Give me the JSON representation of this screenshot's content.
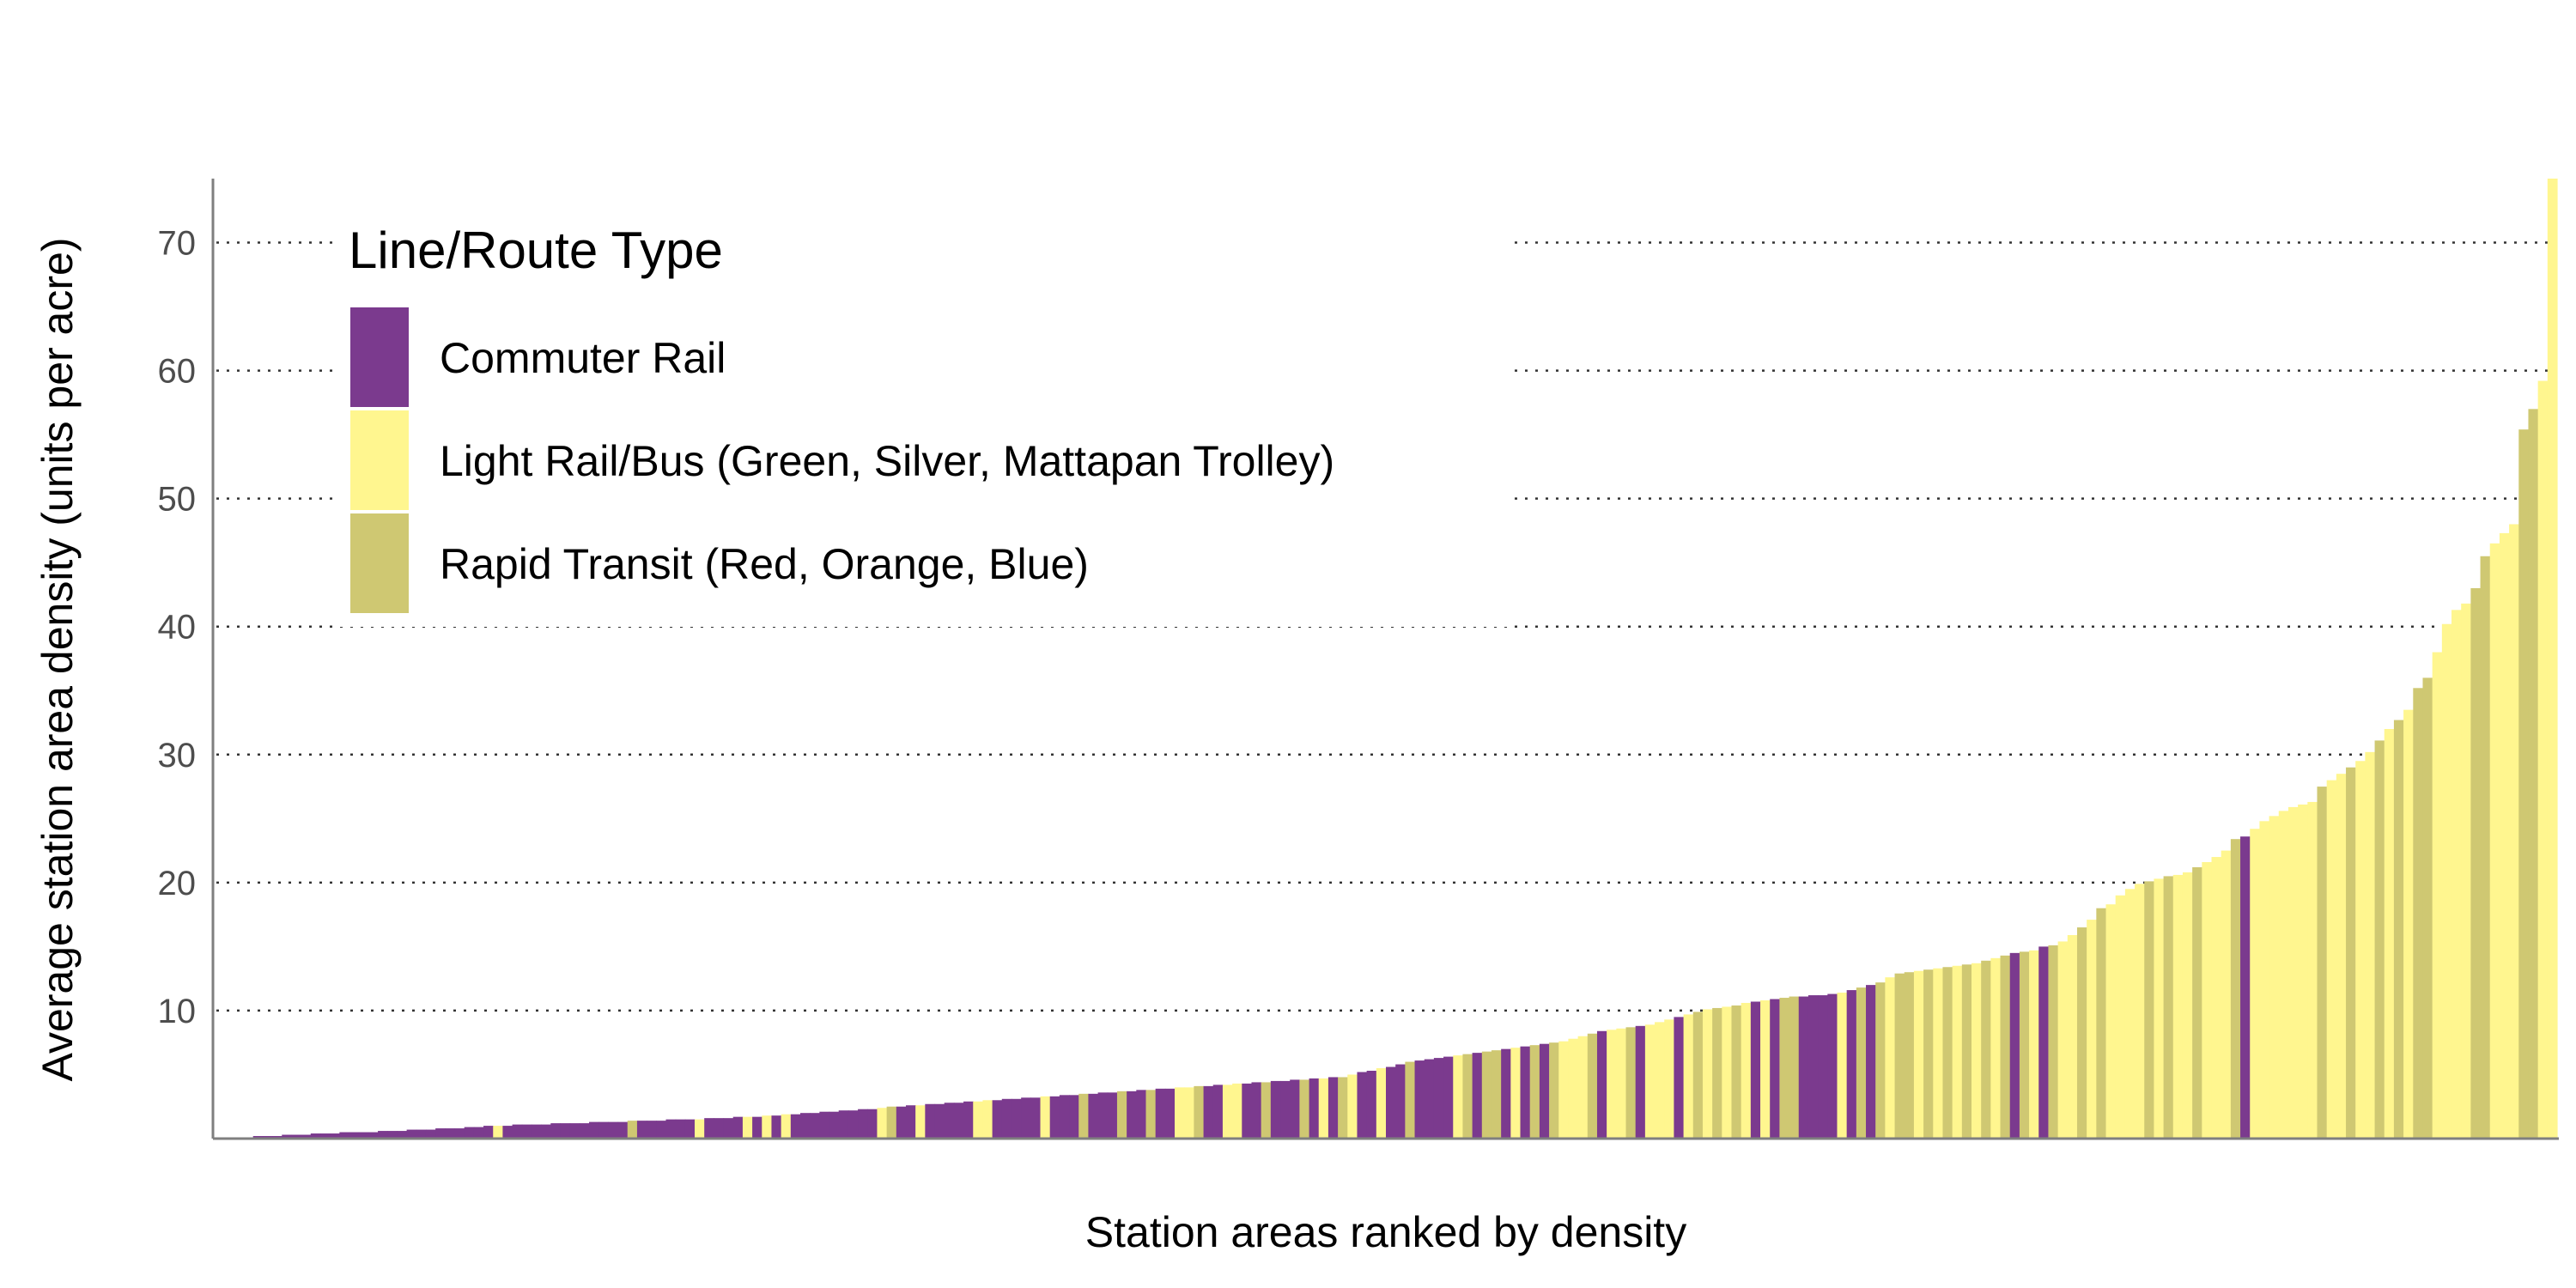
{
  "chart_data": {
    "type": "bar",
    "title": "",
    "xlabel": "Station areas ranked by density",
    "ylabel": "Average station area density (units per acre)",
    "ylim": [
      0,
      75
    ],
    "yticks": [
      10,
      20,
      30,
      40,
      50,
      60,
      70
    ],
    "grid": "horizontal-dotted",
    "legend": {
      "title": "Line/Route Type",
      "placement": "top-left-inside",
      "entries": [
        {
          "key": "CR",
          "label": "Commuter Rail",
          "color": "#7b3a8e"
        },
        {
          "key": "LR",
          "label": "Light Rail/Bus (Green, Silver, Mattapan Trolley)",
          "color": "#fff68f"
        },
        {
          "key": "RT",
          "label": "Rapid Transit (Red, Orange, Blue)",
          "color": "#cfc872"
        }
      ]
    },
    "colors": {
      "CR": "#7b3a8e",
      "LR": "#fff68f",
      "RT": "#cfc872"
    },
    "bars": [
      [
        "CR",
        0.1
      ],
      [
        "CR",
        0.1
      ],
      [
        "CR",
        0.1
      ],
      [
        "CR",
        0.1
      ],
      [
        "CR",
        0.2
      ],
      [
        "CR",
        0.2
      ],
      [
        "CR",
        0.2
      ],
      [
        "CR",
        0.3
      ],
      [
        "CR",
        0.3
      ],
      [
        "CR",
        0.3
      ],
      [
        "CR",
        0.4
      ],
      [
        "CR",
        0.4
      ],
      [
        "CR",
        0.4
      ],
      [
        "CR",
        0.5
      ],
      [
        "CR",
        0.5
      ],
      [
        "CR",
        0.5
      ],
      [
        "CR",
        0.5
      ],
      [
        "CR",
        0.6
      ],
      [
        "CR",
        0.6
      ],
      [
        "CR",
        0.6
      ],
      [
        "CR",
        0.7
      ],
      [
        "CR",
        0.7
      ],
      [
        "CR",
        0.7
      ],
      [
        "CR",
        0.8
      ],
      [
        "CR",
        0.8
      ],
      [
        "CR",
        0.8
      ],
      [
        "CR",
        0.9
      ],
      [
        "CR",
        0.9
      ],
      [
        "CR",
        1.0
      ],
      [
        "LR",
        1.0
      ],
      [
        "CR",
        1.0
      ],
      [
        "CR",
        1.1
      ],
      [
        "CR",
        1.1
      ],
      [
        "CR",
        1.1
      ],
      [
        "CR",
        1.1
      ],
      [
        "CR",
        1.2
      ],
      [
        "CR",
        1.2
      ],
      [
        "CR",
        1.2
      ],
      [
        "CR",
        1.2
      ],
      [
        "CR",
        1.3
      ],
      [
        "CR",
        1.3
      ],
      [
        "CR",
        1.3
      ],
      [
        "CR",
        1.3
      ],
      [
        "RT",
        1.4
      ],
      [
        "CR",
        1.4
      ],
      [
        "CR",
        1.4
      ],
      [
        "CR",
        1.4
      ],
      [
        "CR",
        1.5
      ],
      [
        "CR",
        1.5
      ],
      [
        "CR",
        1.5
      ],
      [
        "LR",
        1.5
      ],
      [
        "CR",
        1.6
      ],
      [
        "CR",
        1.6
      ],
      [
        "CR",
        1.6
      ],
      [
        "CR",
        1.7
      ],
      [
        "LR",
        1.7
      ],
      [
        "CR",
        1.7
      ],
      [
        "LR",
        1.8
      ],
      [
        "CR",
        1.8
      ],
      [
        "LR",
        1.9
      ],
      [
        "CR",
        1.9
      ],
      [
        "CR",
        2.0
      ],
      [
        "CR",
        2.0
      ],
      [
        "CR",
        2.1
      ],
      [
        "CR",
        2.1
      ],
      [
        "CR",
        2.2
      ],
      [
        "CR",
        2.2
      ],
      [
        "CR",
        2.3
      ],
      [
        "CR",
        2.3
      ],
      [
        "LR",
        2.4
      ],
      [
        "RT",
        2.5
      ],
      [
        "CR",
        2.5
      ],
      [
        "CR",
        2.6
      ],
      [
        "LR",
        2.6
      ],
      [
        "CR",
        2.7
      ],
      [
        "CR",
        2.7
      ],
      [
        "CR",
        2.8
      ],
      [
        "CR",
        2.8
      ],
      [
        "CR",
        2.9
      ],
      [
        "LR",
        2.9
      ],
      [
        "LR",
        3.0
      ],
      [
        "CR",
        3.0
      ],
      [
        "CR",
        3.1
      ],
      [
        "CR",
        3.1
      ],
      [
        "CR",
        3.2
      ],
      [
        "CR",
        3.2
      ],
      [
        "LR",
        3.3
      ],
      [
        "CR",
        3.3
      ],
      [
        "CR",
        3.4
      ],
      [
        "CR",
        3.4
      ],
      [
        "RT",
        3.5
      ],
      [
        "CR",
        3.5
      ],
      [
        "CR",
        3.6
      ],
      [
        "CR",
        3.6
      ],
      [
        "RT",
        3.7
      ],
      [
        "CR",
        3.7
      ],
      [
        "CR",
        3.8
      ],
      [
        "RT",
        3.8
      ],
      [
        "CR",
        3.9
      ],
      [
        "CR",
        3.9
      ],
      [
        "LR",
        4.0
      ],
      [
        "LR",
        4.0
      ],
      [
        "RT",
        4.1
      ],
      [
        "CR",
        4.1
      ],
      [
        "CR",
        4.2
      ],
      [
        "LR",
        4.2
      ],
      [
        "LR",
        4.3
      ],
      [
        "CR",
        4.3
      ],
      [
        "CR",
        4.4
      ],
      [
        "RT",
        4.4
      ],
      [
        "CR",
        4.5
      ],
      [
        "CR",
        4.5
      ],
      [
        "CR",
        4.6
      ],
      [
        "RT",
        4.6
      ],
      [
        "CR",
        4.7
      ],
      [
        "LR",
        4.7
      ],
      [
        "CR",
        4.8
      ],
      [
        "RT",
        4.8
      ],
      [
        "LR",
        5.0
      ],
      [
        "CR",
        5.2
      ],
      [
        "CR",
        5.3
      ],
      [
        "LR",
        5.5
      ],
      [
        "CR",
        5.6
      ],
      [
        "CR",
        5.8
      ],
      [
        "RT",
        6.0
      ],
      [
        "CR",
        6.1
      ],
      [
        "CR",
        6.2
      ],
      [
        "CR",
        6.3
      ],
      [
        "CR",
        6.4
      ],
      [
        "LR",
        6.5
      ],
      [
        "RT",
        6.6
      ],
      [
        "CR",
        6.7
      ],
      [
        "RT",
        6.8
      ],
      [
        "RT",
        6.9
      ],
      [
        "CR",
        7.0
      ],
      [
        "LR",
        7.1
      ],
      [
        "CR",
        7.2
      ],
      [
        "RT",
        7.3
      ],
      [
        "CR",
        7.4
      ],
      [
        "RT",
        7.5
      ],
      [
        "LR",
        7.6
      ],
      [
        "LR",
        7.8
      ],
      [
        "LR",
        8.0
      ],
      [
        "RT",
        8.2
      ],
      [
        "CR",
        8.4
      ],
      [
        "LR",
        8.5
      ],
      [
        "LR",
        8.6
      ],
      [
        "RT",
        8.7
      ],
      [
        "CR",
        8.8
      ],
      [
        "LR",
        8.9
      ],
      [
        "LR",
        9.1
      ],
      [
        "LR",
        9.3
      ],
      [
        "CR",
        9.5
      ],
      [
        "LR",
        9.7
      ],
      [
        "RT",
        9.9
      ],
      [
        "LR",
        10.1
      ],
      [
        "RT",
        10.2
      ],
      [
        "LR",
        10.3
      ],
      [
        "RT",
        10.4
      ],
      [
        "LR",
        10.6
      ],
      [
        "CR",
        10.7
      ],
      [
        "LR",
        10.8
      ],
      [
        "CR",
        10.9
      ],
      [
        "RT",
        11.0
      ],
      [
        "RT",
        11.1
      ],
      [
        "CR",
        11.1
      ],
      [
        "CR",
        11.2
      ],
      [
        "CR",
        11.2
      ],
      [
        "CR",
        11.3
      ],
      [
        "LR",
        11.4
      ],
      [
        "CR",
        11.6
      ],
      [
        "RT",
        11.8
      ],
      [
        "CR",
        12.0
      ],
      [
        "RT",
        12.2
      ],
      [
        "LR",
        12.6
      ],
      [
        "RT",
        12.9
      ],
      [
        "RT",
        13.0
      ],
      [
        "LR",
        13.1
      ],
      [
        "RT",
        13.2
      ],
      [
        "LR",
        13.3
      ],
      [
        "RT",
        13.4
      ],
      [
        "LR",
        13.5
      ],
      [
        "RT",
        13.6
      ],
      [
        "LR",
        13.7
      ],
      [
        "RT",
        13.9
      ],
      [
        "LR",
        14.1
      ],
      [
        "RT",
        14.3
      ],
      [
        "CR",
        14.5
      ],
      [
        "RT",
        14.6
      ],
      [
        "LR",
        14.7
      ],
      [
        "CR",
        15.0
      ],
      [
        "RT",
        15.1
      ],
      [
        "LR",
        15.4
      ],
      [
        "LR",
        15.9
      ],
      [
        "RT",
        16.5
      ],
      [
        "LR",
        17.1
      ],
      [
        "RT",
        18.0
      ],
      [
        "LR",
        18.3
      ],
      [
        "LR",
        19.0
      ],
      [
        "LR",
        19.5
      ],
      [
        "LR",
        19.9
      ],
      [
        "RT",
        20.1
      ],
      [
        "LR",
        20.3
      ],
      [
        "RT",
        20.5
      ],
      [
        "LR",
        20.6
      ],
      [
        "LR",
        20.8
      ],
      [
        "RT",
        21.2
      ],
      [
        "LR",
        21.6
      ],
      [
        "LR",
        22.0
      ],
      [
        "LR",
        22.5
      ],
      [
        "RT",
        23.4
      ],
      [
        "CR",
        23.6
      ],
      [
        "LR",
        24.2
      ],
      [
        "LR",
        24.8
      ],
      [
        "LR",
        25.2
      ],
      [
        "LR",
        25.6
      ],
      [
        "LR",
        25.9
      ],
      [
        "LR",
        26.1
      ],
      [
        "LR",
        26.3
      ],
      [
        "RT",
        27.5
      ],
      [
        "LR",
        28.0
      ],
      [
        "LR",
        28.5
      ],
      [
        "RT",
        29.0
      ],
      [
        "LR",
        29.5
      ],
      [
        "LR",
        30.2
      ],
      [
        "RT",
        31.1
      ],
      [
        "LR",
        32.0
      ],
      [
        "RT",
        32.7
      ],
      [
        "LR",
        33.5
      ],
      [
        "RT",
        35.2
      ],
      [
        "RT",
        36.0
      ],
      [
        "LR",
        38.0
      ],
      [
        "LR",
        40.2
      ],
      [
        "LR",
        41.3
      ],
      [
        "LR",
        41.8
      ],
      [
        "RT",
        43.0
      ],
      [
        "RT",
        45.5
      ],
      [
        "LR",
        46.5
      ],
      [
        "LR",
        47.3
      ],
      [
        "LR",
        48.0
      ],
      [
        "RT",
        55.4
      ],
      [
        "RT",
        57.0
      ],
      [
        "LR",
        59.2
      ],
      [
        "LR",
        75.0
      ]
    ]
  }
}
